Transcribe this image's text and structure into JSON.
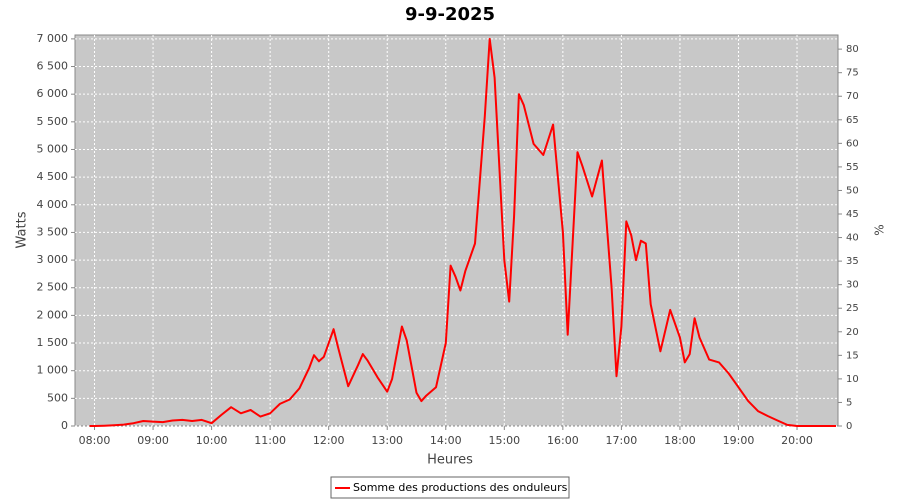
{
  "chart_data": {
    "type": "line",
    "title": "9-9-2025",
    "x_label": "Heures",
    "y_label": "Watts",
    "y2_label": "%",
    "x": [
      "07:55",
      "08:00",
      "08:10",
      "08:20",
      "08:30",
      "08:40",
      "08:50",
      "09:00",
      "09:10",
      "09:20",
      "09:30",
      "09:40",
      "09:50",
      "10:00",
      "10:10",
      "10:20",
      "10:30",
      "10:40",
      "10:50",
      "11:00",
      "11:10",
      "11:20",
      "11:30",
      "11:40",
      "11:45",
      "11:50",
      "11:55",
      "12:05",
      "12:10",
      "12:20",
      "12:30",
      "12:35",
      "12:40",
      "12:50",
      "13:00",
      "13:05",
      "13:15",
      "13:20",
      "13:30",
      "13:35",
      "13:40",
      "13:50",
      "14:00",
      "14:05",
      "14:10",
      "14:15",
      "14:20",
      "14:30",
      "14:40",
      "14:45",
      "14:50",
      "15:00",
      "15:05",
      "15:10",
      "15:15",
      "15:20",
      "15:30",
      "15:40",
      "15:50",
      "16:00",
      "16:05",
      "16:10",
      "16:15",
      "16:20",
      "16:30",
      "16:40",
      "16:50",
      "16:55",
      "17:00",
      "17:05",
      "17:10",
      "17:15",
      "17:20",
      "17:25",
      "17:30",
      "17:40",
      "17:50",
      "18:00",
      "18:05",
      "18:10",
      "18:15",
      "18:20",
      "18:30",
      "18:40",
      "18:50",
      "19:00",
      "19:10",
      "19:20",
      "19:30",
      "19:40",
      "19:50",
      "20:00",
      "20:10",
      "20:20",
      "20:30",
      "20:40"
    ],
    "series": [
      {
        "name": "Somme des productions des onduleurs",
        "color": "#ff0000",
        "values": [
          0,
          0,
          5,
          15,
          25,
          50,
          90,
          80,
          70,
          100,
          110,
          90,
          110,
          50,
          200,
          340,
          230,
          290,
          170,
          230,
          400,
          480,
          680,
          1050,
          1280,
          1170,
          1250,
          1750,
          1400,
          720,
          1100,
          1300,
          1180,
          880,
          620,
          850,
          1800,
          1550,
          600,
          450,
          550,
          700,
          1500,
          2900,
          2700,
          2450,
          2800,
          3300,
          5600,
          7000,
          6300,
          3000,
          2250,
          3800,
          6000,
          5800,
          5100,
          4900,
          5450,
          3500,
          1650,
          3300,
          4950,
          4700,
          4150,
          4800,
          2500,
          900,
          1800,
          3700,
          3450,
          3000,
          3350,
          3300,
          2200,
          1350,
          2100,
          1600,
          1150,
          1300,
          1950,
          1600,
          1200,
          1150,
          950,
          700,
          450,
          270,
          180,
          100,
          20,
          0,
          0,
          0,
          0,
          0
        ]
      }
    ],
    "xlim": [
      "07:40",
      "20:42"
    ],
    "xticks": [
      "08:00",
      "09:00",
      "10:00",
      "11:00",
      "12:00",
      "13:00",
      "14:00",
      "15:00",
      "16:00",
      "17:00",
      "18:00",
      "19:00",
      "20:00"
    ],
    "ylim": [
      0,
      7070
    ],
    "yticks": [
      0,
      500,
      {
        "value": 1000,
        "label": "1 000"
      },
      {
        "value": 1500,
        "label": "1 500"
      },
      {
        "value": 2000,
        "label": "2 000"
      },
      {
        "value": 2500,
        "label": "2 500"
      },
      {
        "value": 3000,
        "label": "3 000"
      },
      {
        "value": 3500,
        "label": "3 500"
      },
      {
        "value": 4000,
        "label": "4 000"
      },
      {
        "value": 4500,
        "label": "4 500"
      },
      {
        "value": 5000,
        "label": "5 000"
      },
      {
        "value": 5500,
        "label": "5 500"
      },
      {
        "value": 6000,
        "label": "6 000"
      },
      {
        "value": 6500,
        "label": "6 500"
      },
      {
        "value": 7000,
        "label": "7 000"
      }
    ],
    "y2lim": [
      0,
      83
    ],
    "y2ticks": [
      0,
      5,
      10,
      15,
      20,
      25,
      30,
      35,
      40,
      45,
      50,
      55,
      60,
      65,
      70,
      75,
      80
    ],
    "grid": true,
    "legend": "bottom"
  }
}
